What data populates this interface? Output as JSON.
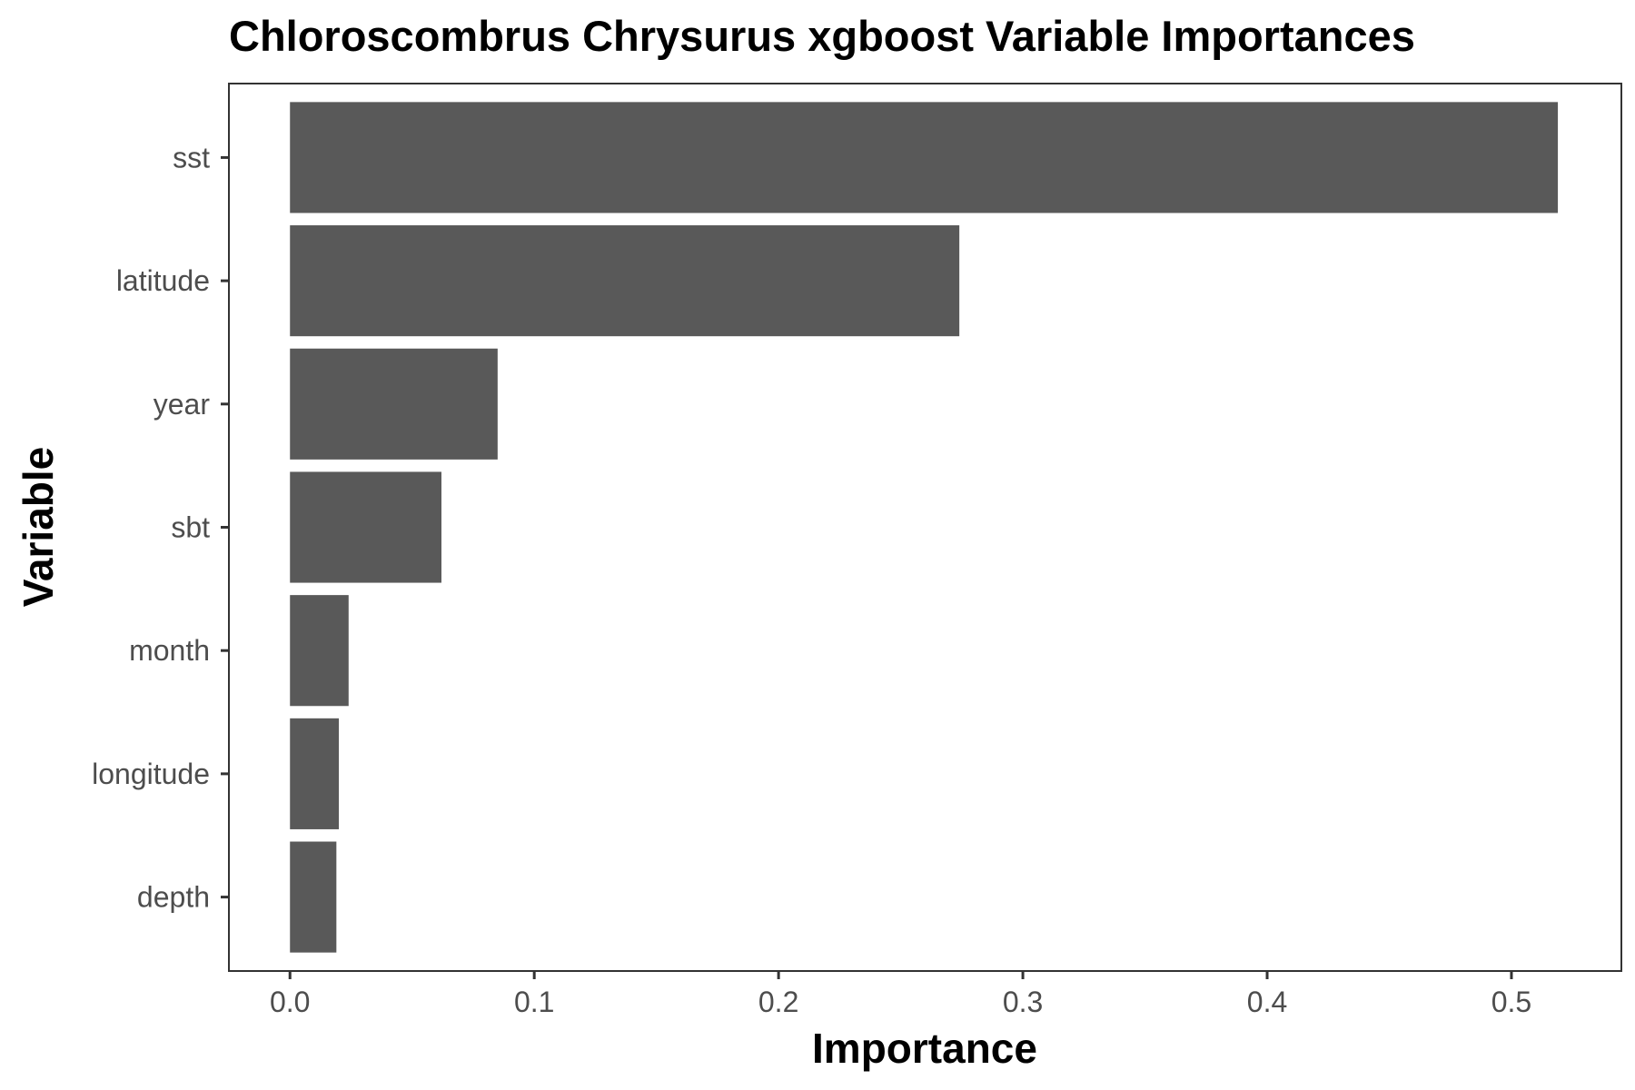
{
  "chart_data": {
    "type": "bar",
    "orientation": "horizontal",
    "title": "Chloroscombrus Chrysurus xgboost Variable Importances",
    "xlabel": "Importance",
    "ylabel": "Variable",
    "categories": [
      "sst",
      "latitude",
      "year",
      "sbt",
      "month",
      "longitude",
      "depth"
    ],
    "values": [
      0.519,
      0.274,
      0.085,
      0.062,
      0.024,
      0.02,
      0.019
    ],
    "xlim": [
      -0.025,
      0.545
    ],
    "xticks": [
      0.0,
      0.1,
      0.2,
      0.3,
      0.4,
      0.5
    ],
    "xtick_labels": [
      "0.0",
      "0.1",
      "0.2",
      "0.3",
      "0.4",
      "0.5"
    ],
    "grid": false,
    "bar_color": "#595959",
    "panel_border_color": "#333333"
  }
}
